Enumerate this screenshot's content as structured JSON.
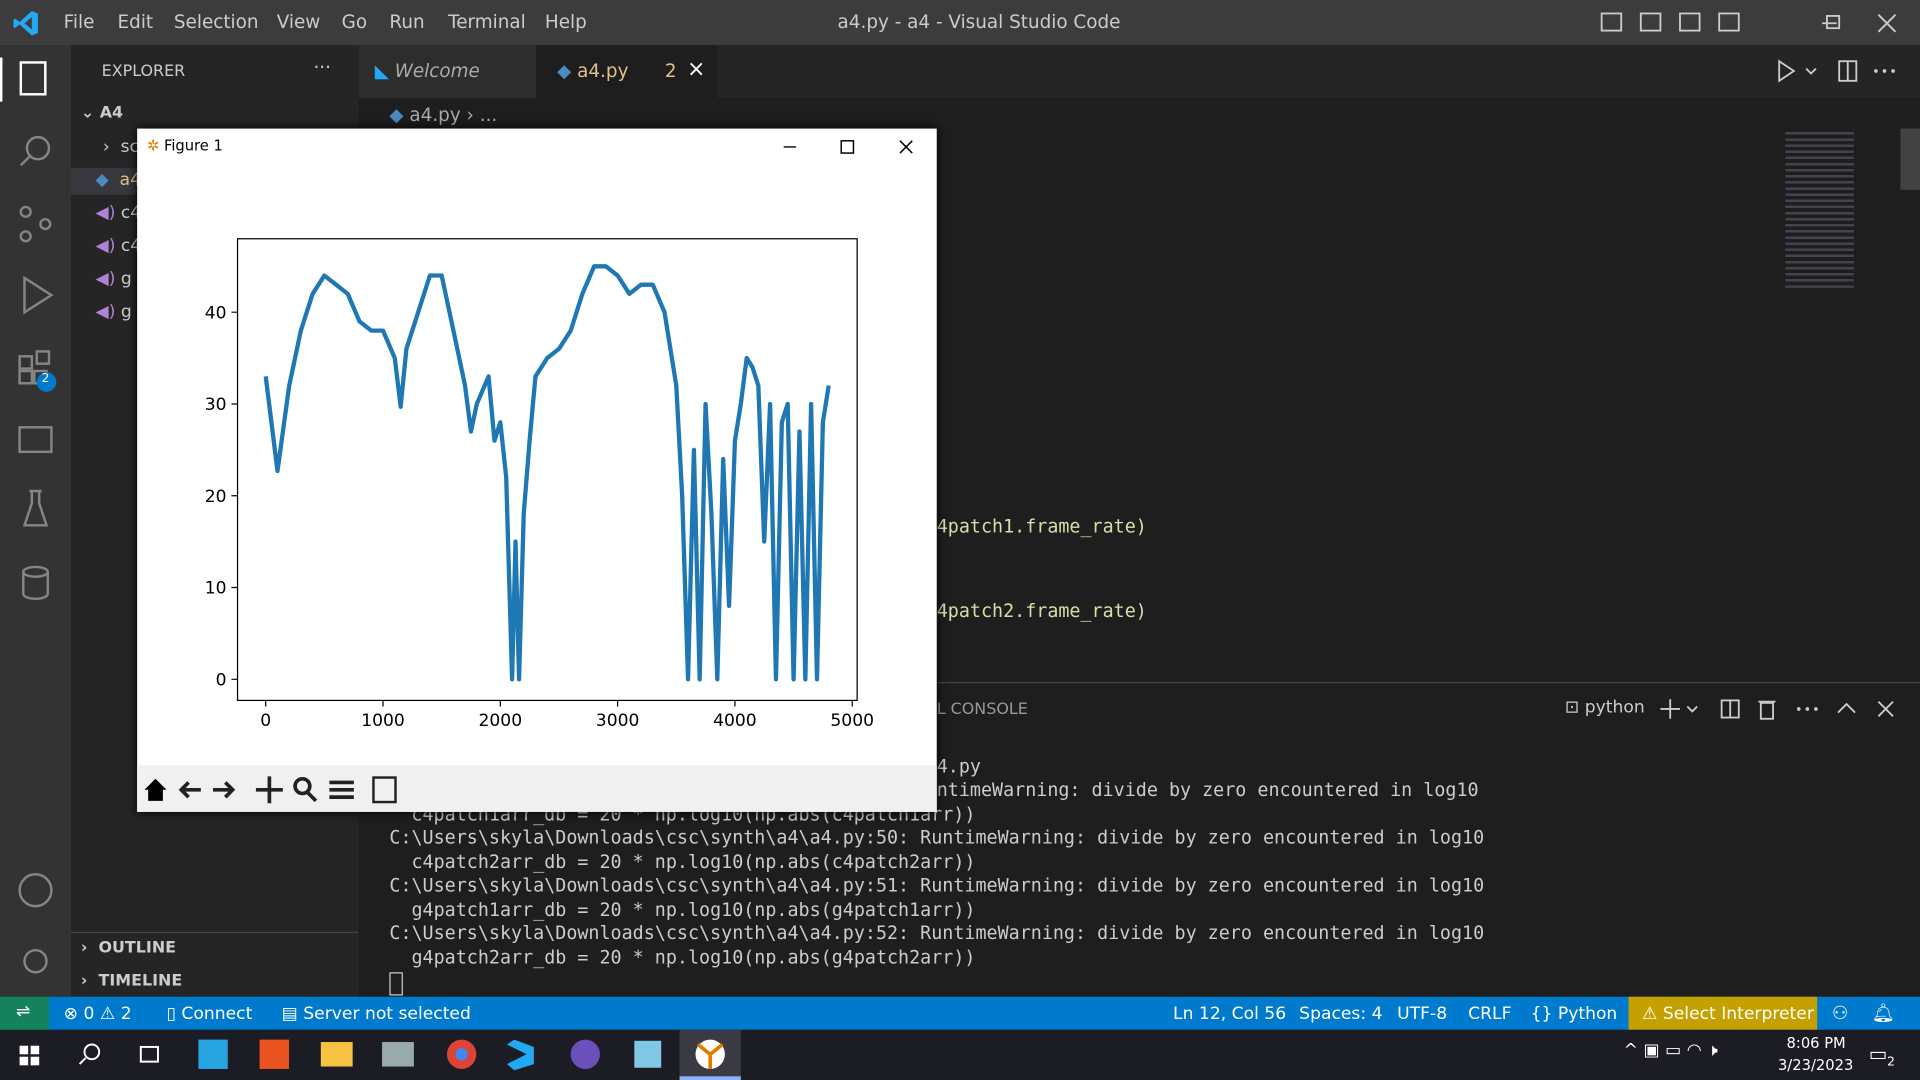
{
  "window": {
    "title": "a4.py - a4 - Visual Studio Code",
    "menu": [
      "File",
      "Edit",
      "Selection",
      "View",
      "Go",
      "Run",
      "Terminal",
      "Help"
    ]
  },
  "activity_badge": "2",
  "sidebar": {
    "title": "EXPLORER",
    "root": "A4",
    "files": [
      "sc",
      "a4",
      "c4",
      "c4",
      "g",
      "g"
    ],
    "sections": [
      "OUTLINE",
      "TIMELINE"
    ]
  },
  "tabs": [
    {
      "label": "Welcome"
    },
    {
      "label": "a4.py",
      "problems": "2"
    }
  ],
  "breadcrumb": [
    "a4.py",
    "..."
  ],
  "code_lines": [
    "4patch1.frame_rate)",
    "4patch2.frame_rate)"
  ],
  "panel": {
    "tab": "L CONSOLE",
    "shell": "python",
    "lines": [
      "4.py",
      "ntimeWarning: divide by zero encountered in log10",
      "c4patch1arr_db = 20 * np.log10(np.abs(c4patch1arr))",
      "C:\\Users\\skyla\\Downloads\\csc\\synth\\a4\\a4.py:50: RuntimeWarning: divide by zero encountered in log10",
      "  c4patch2arr_db = 20 * np.log10(np.abs(c4patch2arr))",
      "C:\\Users\\skyla\\Downloads\\csc\\synth\\a4\\a4.py:51: RuntimeWarning: divide by zero encountered in log10",
      "  g4patch1arr_db = 20 * np.log10(np.abs(g4patch1arr))",
      "C:\\Users\\skyla\\Downloads\\csc\\synth\\a4\\a4.py:52: RuntimeWarning: divide by zero encountered in log10",
      "  g4patch2arr_db = 20 * np.log10(np.abs(g4patch2arr))"
    ]
  },
  "status_bar": {
    "errors": "0",
    "warnings": "2",
    "connect": "Connect",
    "server": "Server not selected",
    "position": "Ln 12, Col 56",
    "spaces": "Spaces: 4",
    "encoding": "UTF-8",
    "eol": "CRLF",
    "language": "Python",
    "interpreter": "Select Interpreter"
  },
  "taskbar": {
    "time": "8:06 PM",
    "date": "3/23/2023",
    "notifications": "2"
  },
  "figure": {
    "title": "Figure 1"
  },
  "chart_data": {
    "type": "line",
    "color": "#1f77b4",
    "x": [
      0,
      100,
      200,
      300,
      400,
      500,
      600,
      700,
      800,
      900,
      1000,
      1100,
      1150,
      1200,
      1300,
      1400,
      1500,
      1600,
      1700,
      1750,
      1800,
      1900,
      1950,
      2000,
      2050,
      2100,
      2130,
      2160,
      2200,
      2250,
      2300,
      2400,
      2500,
      2600,
      2700,
      2800,
      2900,
      3000,
      3100,
      3200,
      3300,
      3400,
      3500,
      3550,
      3600,
      3650,
      3700,
      3750,
      3800,
      3850,
      3900,
      3950,
      4000,
      4050,
      4100,
      4150,
      4200,
      4250,
      4300,
      4350,
      4400,
      4450,
      4500,
      4550,
      4600,
      4650,
      4700,
      4750,
      4800
    ],
    "values": [
      33,
      22.7,
      32,
      38,
      42,
      44,
      43,
      42,
      39,
      38,
      38,
      35,
      29.7,
      36,
      40,
      44,
      44,
      38,
      32,
      27,
      30,
      33,
      26,
      28,
      22,
      0,
      15,
      0,
      18,
      26,
      33,
      35,
      36,
      38,
      42,
      45,
      45,
      44,
      42,
      43,
      43,
      40,
      32,
      20,
      0,
      25,
      0,
      30,
      18,
      0,
      24,
      8,
      26,
      30,
      35,
      34,
      32,
      15,
      30,
      0,
      28,
      30,
      0,
      27,
      0,
      30,
      0,
      28,
      32
    ],
    "xlim": [
      -240,
      5042
    ],
    "ylim": [
      -2.3,
      48
    ],
    "xticks": [
      0,
      1000,
      2000,
      3000,
      4000,
      5000
    ],
    "yticks": [
      0,
      10,
      20,
      30,
      40
    ]
  }
}
